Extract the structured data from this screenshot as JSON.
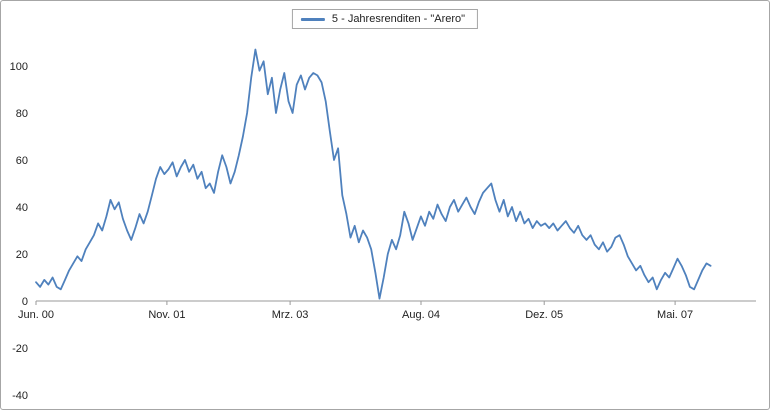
{
  "window": {
    "background": "#ffffff",
    "border_color": "#a6a6a6"
  },
  "legend": {
    "label": "5 - Jahresrenditen - \"Arero\""
  },
  "chart_data": {
    "type": "line",
    "title": "5 - Jahresrenditen - \"Arero\"",
    "legend_position": "top-center",
    "grid": false,
    "axis_color": "#9a9a9a",
    "text_color": "#1f1f1f",
    "xlabel": "",
    "ylabel": "",
    "x_ticks": [
      {
        "month": 0,
        "label": "Jun. 00"
      },
      {
        "month": 17,
        "label": "Nov. 01"
      },
      {
        "month": 33,
        "label": "Mrz. 03"
      },
      {
        "month": 50,
        "label": "Aug. 04"
      },
      {
        "month": 66,
        "label": "Dez. 05"
      },
      {
        "month": 83,
        "label": "Mai. 07"
      }
    ],
    "y_ticks": [
      100,
      80,
      60,
      40,
      20,
      0,
      -20,
      -40
    ],
    "ylim": [
      -40,
      110
    ],
    "x_unit": "months since Jun 2000",
    "series": [
      {
        "name": "5 - Jahresrenditen - \"Arero\"",
        "color": "#4f81bd",
        "x_start_month": 0,
        "x_step_months": 0.5375,
        "values": [
          8,
          6,
          9,
          7,
          10,
          6,
          5,
          9,
          13,
          16,
          19,
          17,
          22,
          25,
          28,
          33,
          30,
          36,
          43,
          39,
          42,
          35,
          30,
          26,
          31,
          37,
          33,
          38,
          45,
          52,
          57,
          54,
          56,
          59,
          53,
          57,
          60,
          55,
          58,
          52,
          55,
          48,
          50,
          46,
          55,
          62,
          57,
          50,
          55,
          62,
          70,
          80,
          95,
          107,
          98,
          102,
          88,
          95,
          80,
          90,
          97,
          85,
          80,
          92,
          96,
          90,
          95,
          97,
          96,
          93,
          85,
          72,
          60,
          65,
          45,
          37,
          27,
          32,
          25,
          30,
          27,
          22,
          12,
          1,
          10,
          20,
          26,
          22,
          28,
          38,
          33,
          26,
          31,
          36,
          32,
          38,
          35,
          41,
          37,
          34,
          40,
          43,
          38,
          41,
          44,
          40,
          37,
          42,
          46,
          48,
          50,
          43,
          38,
          43,
          36,
          40,
          34,
          38,
          33,
          35,
          31,
          34,
          32,
          33,
          31,
          33,
          30,
          32,
          34,
          31,
          29,
          32,
          28,
          26,
          28,
          24,
          22,
          25,
          21,
          23,
          27,
          28,
          24,
          19,
          16,
          13,
          15,
          11,
          8,
          10,
          5,
          9,
          12,
          10,
          14,
          18,
          15,
          11,
          6,
          5,
          9,
          13,
          16,
          15
        ]
      }
    ]
  }
}
